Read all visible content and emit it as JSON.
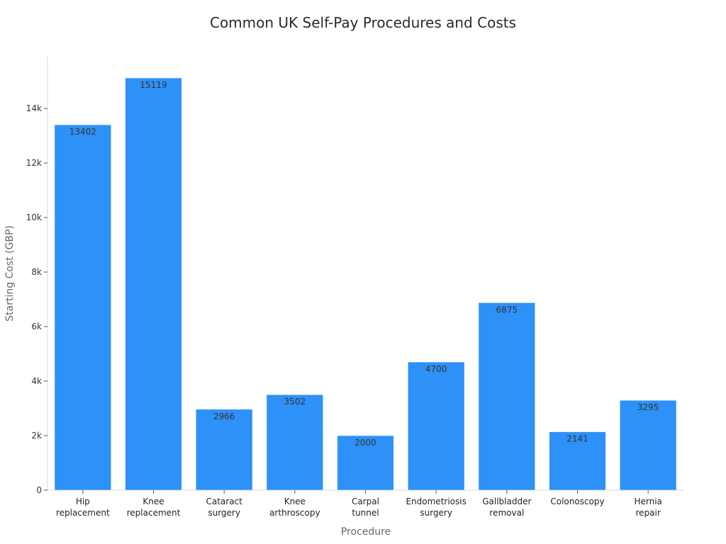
{
  "chart_data": {
    "type": "bar",
    "title": "Common UK Self-Pay Procedures and Costs",
    "xlabel": "Procedure",
    "ylabel": "Starting Cost (GBP)",
    "categories": [
      [
        "Hip",
        "replacement"
      ],
      [
        "Knee",
        "replacement"
      ],
      [
        "Cataract",
        "surgery"
      ],
      [
        "Knee",
        "arthroscopy"
      ],
      [
        "Carpal",
        "tunnel"
      ],
      [
        "Endometriosis",
        "surgery"
      ],
      [
        "Gallbladder",
        "removal"
      ],
      [
        "Colonoscopy"
      ],
      [
        "Hernia",
        "repair"
      ]
    ],
    "values": [
      13402,
      15119,
      2966,
      3502,
      2000,
      4700,
      6875,
      2141,
      3295
    ],
    "ylim": [
      0,
      15900
    ],
    "yticks": [
      0,
      2000,
      4000,
      6000,
      8000,
      10000,
      12000,
      14000
    ],
    "ytick_labels": [
      "0",
      "2k",
      "4k",
      "6k",
      "8k",
      "10k",
      "12k",
      "14k"
    ],
    "bar_color": "#2e91f7",
    "grid": false,
    "legend": "none"
  }
}
